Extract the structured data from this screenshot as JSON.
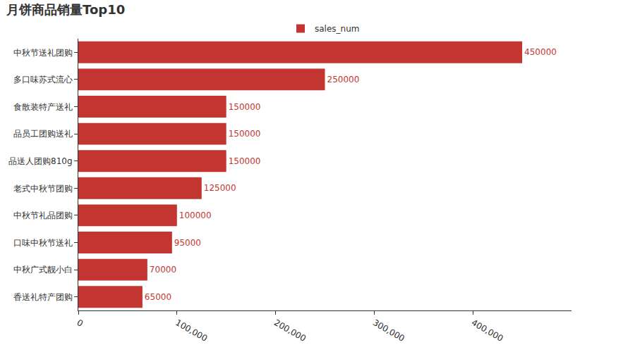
{
  "chart_data": {
    "type": "bar",
    "title": "月饼商品销量Top10",
    "orientation": "horizontal",
    "categories": [
      "中秋节送礼团购",
      "多口味苏式流心",
      "食散装特产送礼",
      "品员工团购送礼",
      "品送人团购810g",
      "老式中秋节团购",
      "中秋节礼品团购",
      "口味中秋节送礼",
      "中秋广式靓小白",
      "香送礼特产团购"
    ],
    "series": [
      {
        "name": "sales_num",
        "color": "#c23531",
        "values": [
          450000,
          250000,
          150000,
          150000,
          150000,
          125000,
          100000,
          95000,
          70000,
          65000
        ]
      }
    ],
    "xlim": [
      0,
      500000
    ],
    "xticks": [
      0,
      {
        "value": 100000,
        "label": "100,000"
      },
      {
        "value": 200000,
        "label": "200,000"
      },
      {
        "value": 300000,
        "label": "300,000"
      },
      {
        "value": 400000,
        "label": "400,000"
      }
    ],
    "grid": false,
    "legend": "top",
    "data_labels": true
  }
}
